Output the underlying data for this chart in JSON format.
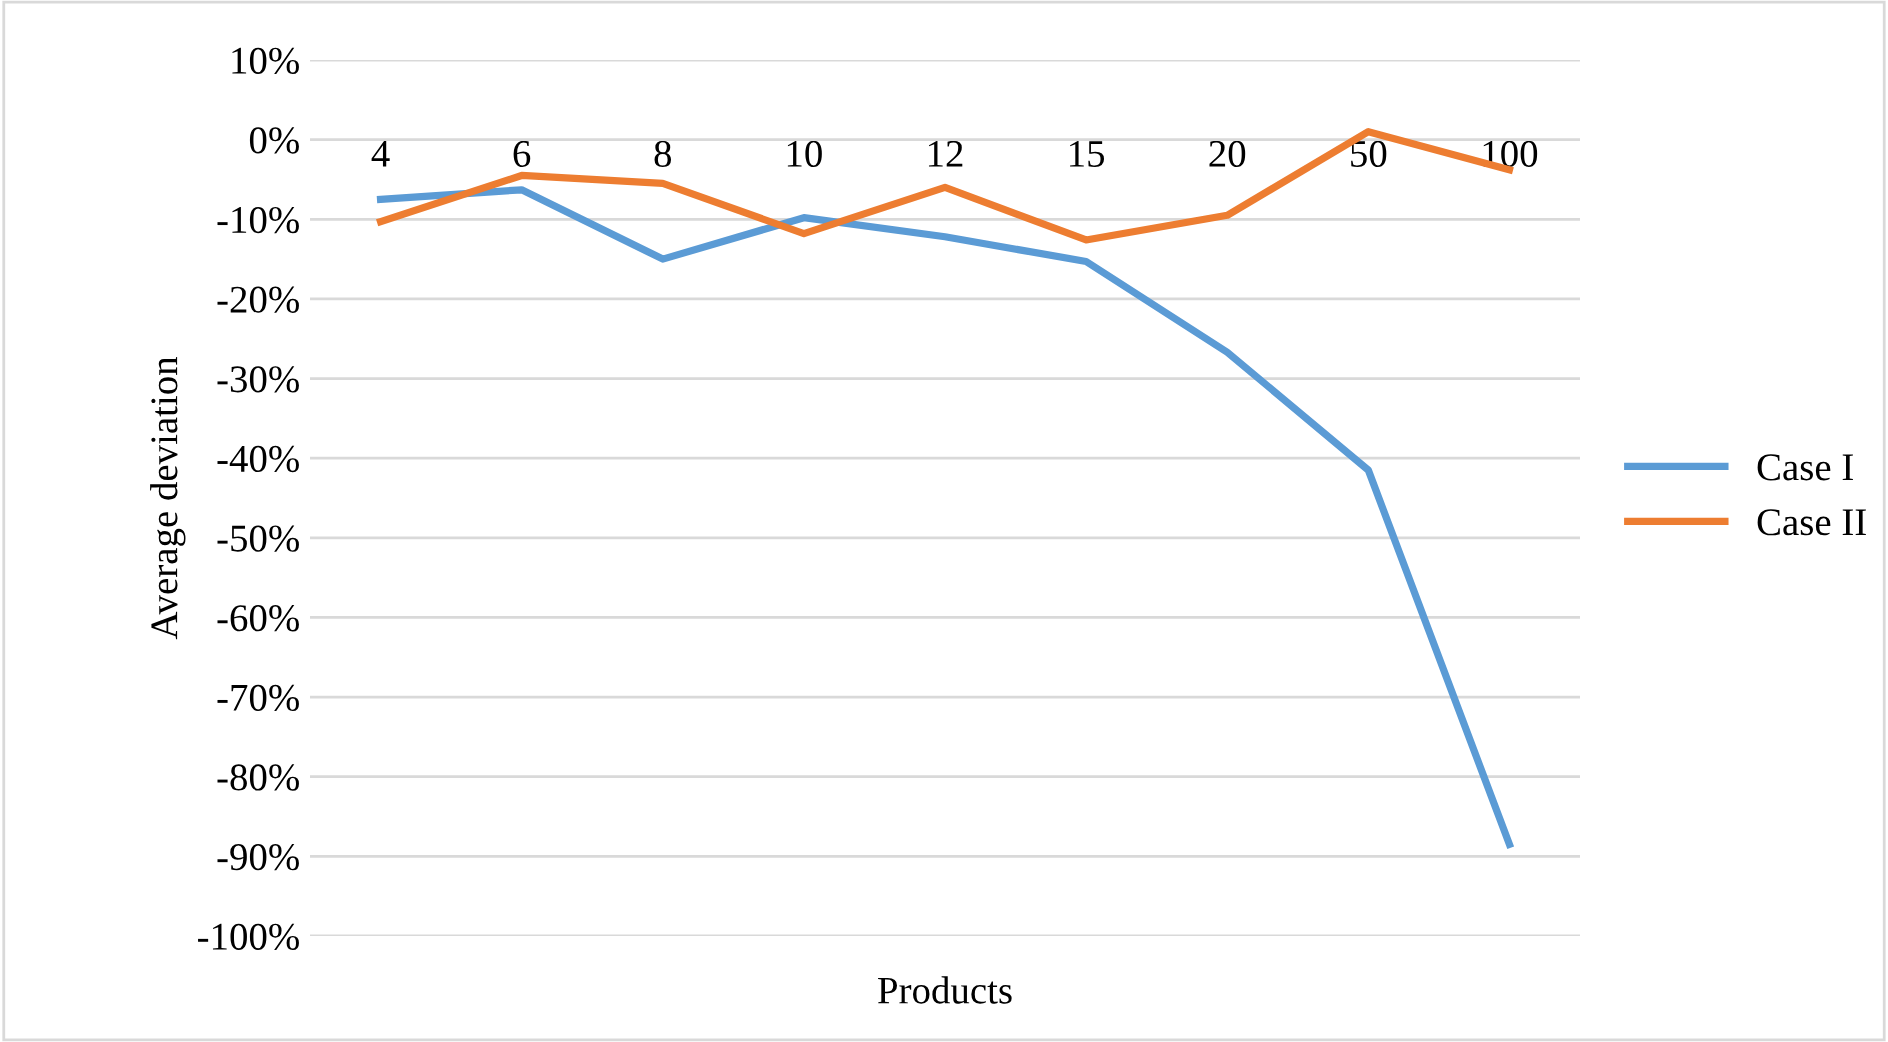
{
  "chart_data": {
    "type": "line",
    "xlabel": "Products",
    "ylabel": "Average deviation",
    "categories": [
      "4",
      "6",
      "8",
      "10",
      "12",
      "15",
      "20",
      "50",
      "100"
    ],
    "series": [
      {
        "name": "Case I",
        "color": "#5b9bd5",
        "values": [
          -7.5,
          -6.3,
          -15,
          -9.8,
          -12.2,
          -15.3,
          -26.7,
          -41.5,
          -88.5
        ]
      },
      {
        "name": "Case II",
        "color": "#ed7d31",
        "values": [
          -10.3,
          -4.5,
          -5.5,
          -11.8,
          -6.0,
          -12.6,
          -9.5,
          1,
          -3.8
        ]
      }
    ],
    "ylim": [
      -100,
      10
    ],
    "yticks": [
      {
        "value": 10,
        "label": "10%"
      },
      {
        "value": 0,
        "label": "0%"
      },
      {
        "value": -10,
        "label": "-10%"
      },
      {
        "value": -20,
        "label": "-20%"
      },
      {
        "value": -30,
        "label": "-30%"
      },
      {
        "value": -40,
        "label": "-40%"
      },
      {
        "value": -50,
        "label": "-50%"
      },
      {
        "value": -60,
        "label": "-60%"
      },
      {
        "value": -70,
        "label": "-70%"
      },
      {
        "value": -80,
        "label": "-80%"
      },
      {
        "value": -90,
        "label": "-90%"
      },
      {
        "value": -100,
        "label": "-100%"
      }
    ],
    "grid": "y",
    "legend": "right",
    "marker": "none",
    "line_style": "solid"
  }
}
